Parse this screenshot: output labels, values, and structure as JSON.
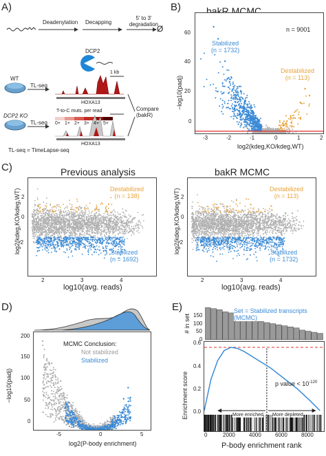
{
  "panel_labels": {
    "a": "A)",
    "b": "B)",
    "c": "C)",
    "d": "D)",
    "e": "E)"
  },
  "panel_a": {
    "steps": [
      "Deadenylation",
      "Decapping",
      "5' to 3' degradation"
    ],
    "null_symbol": "Ø",
    "dcp2": "DCP2",
    "wt": "WT",
    "ko": "DCP2 KO",
    "tlseq": "TL-seq",
    "kb": "1 kb",
    "gene": "HOXA13",
    "mutation_title": "T-to-C muts. per read",
    "mutation_bins": [
      "0+",
      "1+",
      "2+",
      "3+",
      "4+",
      "5+"
    ],
    "compare": "Compare (bakR)",
    "footnote": "TL-seq = TimeLapse-seq"
  },
  "panel_b": {
    "title": "bakR MCMC",
    "n": "n = 9001",
    "stabilized": "Stabilized",
    "stabilized_n": "(n = 1732)",
    "destabilized": "Destabilized",
    "destabilized_n": "(n = 113)",
    "ylabel": "−log10(padj)",
    "xlabel": "log2(kdeg,KO/kdeg,WT)",
    "yticks": [
      "60",
      "40",
      "20",
      "0"
    ],
    "xticks": [
      "-3",
      "-2",
      "-1",
      "0",
      "1",
      "2"
    ]
  },
  "panel_c_left": {
    "title": "Previous analysis",
    "destabilized": "Destabilized",
    "destabilized_n": "(n = 138)",
    "stabilized": "Stabilized",
    "stabilized_n": "(n = 1692)",
    "ylabel": "log2(kdeg,KO/kdeg,WT)",
    "yticks": [
      "2",
      "0",
      "-2"
    ],
    "xticks": [
      "2",
      "3",
      "4"
    ]
  },
  "panel_c_right": {
    "title": "bakR MCMC",
    "destabilized": "Destabilized",
    "destabilized_n": "(n = 113)",
    "stabilized": "Stabilized",
    "stabilized_n": "(n = 1732)",
    "ylabel": "log2(kdeg,KO/kdeg,WT)",
    "yticks": [
      "2",
      "0",
      "-2"
    ],
    "xticks": [
      "2",
      "3",
      "4"
    ]
  },
  "panel_c_xlabel": "log10(avg. reads)",
  "panel_d": {
    "legend_title": "MCMC Conclusion:",
    "not_stabilized": "Not stabilized",
    "stabilized": "Stabilized",
    "ylabel": "−log10(padj)",
    "xlabel": "log2(P-body enrichment)",
    "yticks": [
      "200",
      "150",
      "100",
      "50",
      "0"
    ],
    "xticks": [
      "-5",
      "0",
      "5"
    ]
  },
  "panel_e": {
    "set_label": "Set = Stabilized transcripts (MCMC)",
    "hist_ylabel": "# in set",
    "hist_yticks": [
      "150",
      "100",
      "50",
      "0"
    ],
    "es_ylabel": "Enrichment score",
    "es_yticks": [
      "0.6",
      "0.4",
      "0.2",
      "0.0"
    ],
    "pvalue": "p value < 10",
    "pvalue_exp": "-120",
    "more_enriched": "More enriched",
    "more_depleted": "More depleted",
    "xlabel": "P-body enrichment rank",
    "xticks": [
      "0",
      "2000",
      "4000",
      "6000",
      "8000"
    ]
  },
  "colors": {
    "stabilized": "#3a8ad6",
    "destabilized": "#e8a23a",
    "grey": "#b0b0b0",
    "red": "#e03030"
  },
  "chart_data": [
    {
      "type": "scatter",
      "panel": "B",
      "title": "bakR MCMC",
      "xlabel": "log2(kdeg,KO/kdeg,WT)",
      "ylabel": "−log10(padj)",
      "xlim": [
        -3.3,
        2.3
      ],
      "ylim": [
        0,
        70
      ],
      "series": [
        {
          "name": "Stabilized",
          "points": [
            [
              -2.5,
              62
            ],
            [
              -2.3,
              55
            ],
            [
              -2.0,
              42
            ],
            [
              -1.8,
              30
            ],
            [
              -1.5,
              22
            ],
            [
              -1.2,
              15
            ],
            [
              -1.0,
              10
            ],
            [
              -0.8,
              6
            ],
            [
              -0.6,
              4
            ],
            [
              -0.5,
              2
            ]
          ]
        },
        {
          "name": "Destabilized",
          "points": [
            [
              0.5,
              2
            ],
            [
              0.7,
              5
            ],
            [
              0.9,
              9
            ],
            [
              1.1,
              13
            ],
            [
              1.3,
              18
            ],
            [
              1.5,
              26
            ],
            [
              1.7,
              22
            ]
          ]
        }
      ],
      "hline": 1.3
    },
    {
      "type": "scatter",
      "panel": "D",
      "xlabel": "log2(P-body enrichment)",
      "ylabel": "−log10(padj)",
      "xlim": [
        -7,
        6
      ],
      "ylim": [
        0,
        220
      ],
      "series": [
        {
          "name": "Not stabilized",
          "points": [
            [
              -6,
              200
            ],
            [
              -5,
              150
            ],
            [
              -4,
              110
            ],
            [
              -3,
              60
            ],
            [
              -2,
              25
            ],
            [
              -1,
              8
            ],
            [
              0,
              2
            ],
            [
              1,
              5
            ],
            [
              2,
              20
            ]
          ]
        },
        {
          "name": "Stabilized",
          "points": [
            [
              -3,
              40
            ],
            [
              -2,
              20
            ],
            [
              -1,
              6
            ],
            [
              0,
              1
            ],
            [
              1,
              6
            ],
            [
              2,
              30
            ],
            [
              3,
              70
            ],
            [
              3.5,
              95
            ]
          ]
        }
      ]
    },
    {
      "type": "line",
      "panel": "E",
      "xlabel": "P-body enrichment rank",
      "ylabel": "Enrichment score",
      "xlim": [
        0,
        9000
      ],
      "ylim": [
        0,
        0.65
      ],
      "x": [
        0,
        500,
        1000,
        1500,
        2000,
        2500,
        3000,
        4000,
        5000,
        6000,
        7000,
        8000,
        8700
      ],
      "values": [
        0.0,
        0.3,
        0.48,
        0.58,
        0.61,
        0.6,
        0.57,
        0.49,
        0.41,
        0.31,
        0.21,
        0.09,
        0.0
      ],
      "hist_values": [
        150,
        145,
        140,
        130,
        125,
        110,
        100,
        90,
        95,
        85,
        80,
        75,
        70,
        65,
        60,
        55,
        45,
        40,
        35,
        30
      ],
      "vline": 4700
    }
  ]
}
